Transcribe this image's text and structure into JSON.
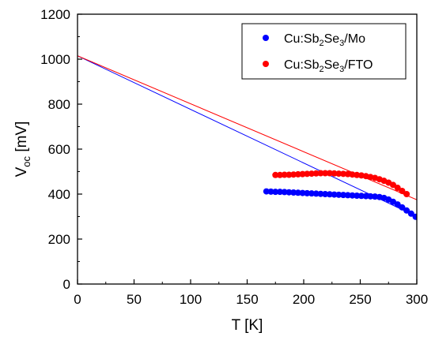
{
  "chart_data": {
    "type": "scatter",
    "xlabel": "T [K]",
    "ylabel": {
      "base": "V",
      "sub": "oc",
      "rest": " [mV]"
    },
    "xlim": [
      0,
      300
    ],
    "ylim": [
      0,
      1200
    ],
    "xticks": [
      0,
      50,
      100,
      150,
      200,
      250,
      300
    ],
    "yticks": [
      0,
      200,
      400,
      600,
      800,
      1000,
      1200
    ],
    "legend_position": "top-right",
    "series": [
      {
        "name": {
          "p1": "Cu:Sb",
          "s1": "2",
          "p2": "Se",
          "s2": "3",
          "p3": "/Mo"
        },
        "color": "#0000ff",
        "points": [
          [
            167,
            412
          ],
          [
            171,
            411
          ],
          [
            175,
            410
          ],
          [
            179,
            410
          ],
          [
            183,
            409
          ],
          [
            187,
            408
          ],
          [
            191,
            407
          ],
          [
            195,
            406
          ],
          [
            199,
            405
          ],
          [
            203,
            404
          ],
          [
            207,
            403
          ],
          [
            211,
            402
          ],
          [
            215,
            401
          ],
          [
            219,
            400
          ],
          [
            223,
            399
          ],
          [
            227,
            398
          ],
          [
            231,
            397
          ],
          [
            235,
            396
          ],
          [
            239,
            395
          ],
          [
            243,
            394
          ],
          [
            247,
            393
          ],
          [
            251,
            392
          ],
          [
            255,
            391
          ],
          [
            259,
            390
          ],
          [
            263,
            389
          ],
          [
            267,
            387
          ],
          [
            271,
            383
          ],
          [
            275,
            376
          ],
          [
            279,
            366
          ],
          [
            283,
            354
          ],
          [
            287,
            341
          ],
          [
            291,
            327
          ],
          [
            295,
            313
          ],
          [
            299,
            299
          ]
        ],
        "fit": [
          [
            0,
            1015
          ],
          [
            300,
            300
          ]
        ]
      },
      {
        "name": {
          "p1": "Cu:Sb",
          "s1": "2",
          "p2": "Se",
          "s2": "3",
          "p3": "/FTO"
        },
        "color": "#ff0000",
        "points": [
          [
            175,
            485
          ],
          [
            179,
            485
          ],
          [
            183,
            486
          ],
          [
            187,
            486
          ],
          [
            191,
            487
          ],
          [
            195,
            488
          ],
          [
            199,
            489
          ],
          [
            203,
            490
          ],
          [
            207,
            491
          ],
          [
            211,
            492
          ],
          [
            215,
            493
          ],
          [
            219,
            493
          ],
          [
            223,
            493
          ],
          [
            227,
            492
          ],
          [
            231,
            491
          ],
          [
            235,
            490
          ],
          [
            239,
            489
          ],
          [
            243,
            487
          ],
          [
            247,
            485
          ],
          [
            251,
            483
          ],
          [
            255,
            480
          ],
          [
            259,
            476
          ],
          [
            263,
            472
          ],
          [
            267,
            466
          ],
          [
            271,
            459
          ],
          [
            275,
            451
          ],
          [
            279,
            441
          ],
          [
            283,
            428
          ],
          [
            287,
            414
          ],
          [
            291,
            400
          ]
        ],
        "fit": [
          [
            0,
            1015
          ],
          [
            300,
            375
          ]
        ]
      }
    ]
  }
}
